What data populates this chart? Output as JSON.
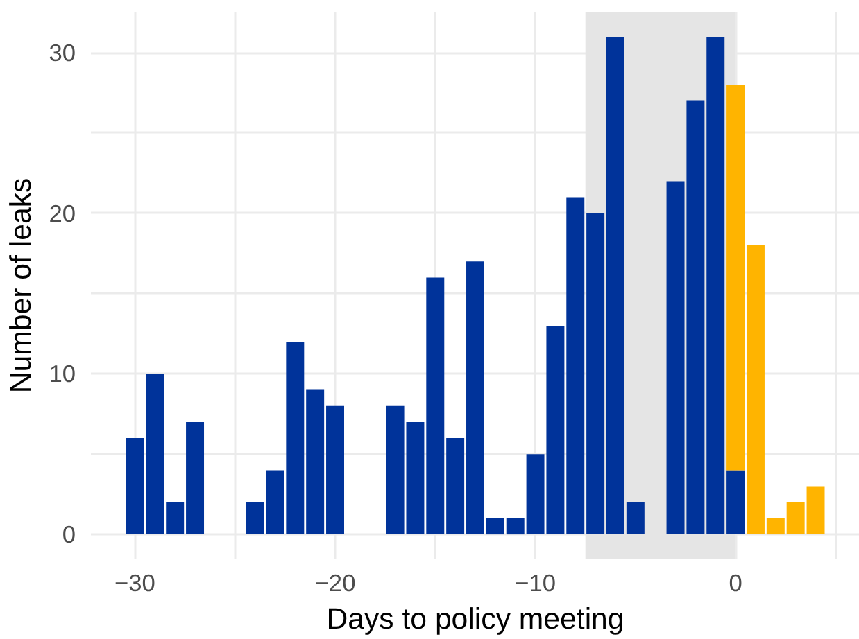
{
  "chart_data": {
    "type": "bar",
    "stacked": true,
    "xlabel": "Days to policy meeting",
    "ylabel": "Number of leaks",
    "x": [
      -30,
      -29,
      -28,
      -27,
      -26,
      -25,
      -24,
      -23,
      -22,
      -21,
      -20,
      -19,
      -18,
      -17,
      -16,
      -15,
      -14,
      -13,
      -12,
      -11,
      -10,
      -9,
      -8,
      -7,
      -6,
      -5,
      -4,
      -3,
      -2,
      -1,
      0,
      1,
      2,
      3,
      4
    ],
    "series": [
      {
        "color": "#00339a",
        "values": [
          6,
          10,
          2,
          7,
          null,
          null,
          2,
          4,
          12,
          9,
          8,
          null,
          null,
          8,
          7,
          16,
          6,
          17,
          1,
          1,
          5,
          13,
          21,
          20,
          31,
          2,
          null,
          22,
          27,
          31,
          4,
          null,
          null,
          null,
          null
        ]
      },
      {
        "color": "#ffb400",
        "values": [
          null,
          null,
          null,
          null,
          null,
          null,
          null,
          null,
          null,
          null,
          null,
          null,
          null,
          null,
          null,
          null,
          null,
          null,
          null,
          null,
          null,
          null,
          null,
          null,
          null,
          null,
          null,
          null,
          null,
          null,
          24,
          18,
          1,
          2,
          3
        ]
      }
    ],
    "xlim": [
      -32.2,
      6.2
    ],
    "ylim": [
      -1.55,
      32.55
    ],
    "xticks": [
      {
        "value": -30,
        "label": "−30"
      },
      {
        "value": -20,
        "label": "−20"
      },
      {
        "value": -10,
        "label": "−10"
      },
      0
    ],
    "yticks": [
      0,
      10,
      20,
      30
    ],
    "bands": [
      {
        "axis": "x",
        "from": -7.5,
        "to": 0,
        "color": "#e5e5e5"
      }
    ],
    "grid": true
  }
}
